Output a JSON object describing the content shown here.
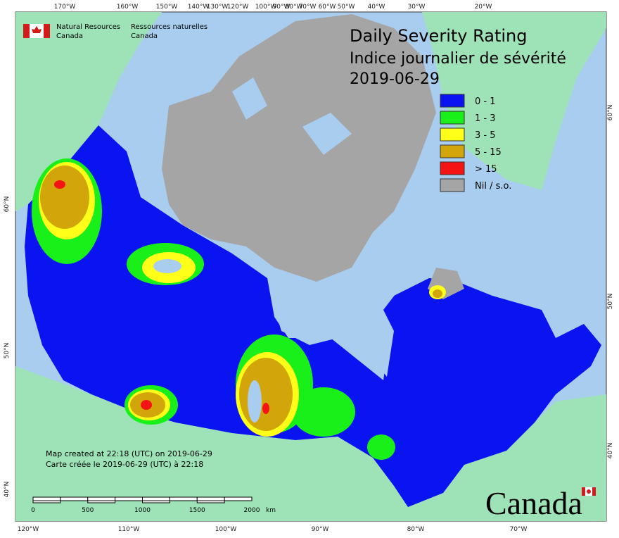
{
  "header": {
    "agency_en": "Natural Resources",
    "agency_en_2": "Canada",
    "agency_fr": "Ressources naturelles",
    "agency_fr_2": "Canada"
  },
  "title": {
    "line1": "Daily Severity Rating",
    "line2": "Indice journalier de sévérité",
    "date": "2019-06-29"
  },
  "legend": {
    "items": [
      {
        "label": "0 - 1",
        "color": "#0a14f0"
      },
      {
        "label": "1 - 3",
        "color": "#19f019"
      },
      {
        "label": "3 - 5",
        "color": "#ffff19"
      },
      {
        "label": "5 - 15",
        "color": "#d2a50a"
      },
      {
        "label": "> 15",
        "color": "#f51414"
      },
      {
        "label": "Nil / s.o.",
        "color": "#a5a5a5"
      }
    ]
  },
  "graticule": {
    "top": [
      "170°W",
      "160°W",
      "150°W",
      "140°W",
      "130°W",
      "120°W",
      "100°W",
      "90°W",
      "80°W",
      "70°W",
      "60°W",
      "50°W",
      "40°W",
      "30°W",
      "20°W"
    ],
    "bottom": [
      "120°W",
      "110°W",
      "100°W",
      "90°W",
      "80°W",
      "70°W"
    ],
    "left": [
      "60°N",
      "50°N",
      "40°N"
    ],
    "right": [
      "60°N",
      "50°N",
      "40°N"
    ]
  },
  "credit": {
    "line_en": "Map created at 22:18 (UTC) on 2019-06-29",
    "line_fr": "Carte créée le 2019-06-29 (UTC) à 22:18"
  },
  "scale": {
    "labels": [
      "0",
      "500",
      "1000",
      "1500",
      "2000"
    ],
    "unit": "km"
  },
  "wordmark": "Canada"
}
